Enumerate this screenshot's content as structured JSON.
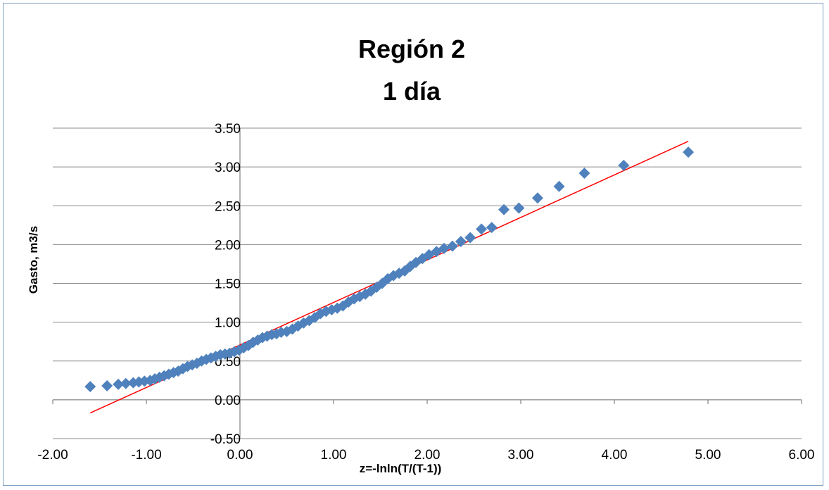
{
  "chart_data": {
    "type": "scatter",
    "title": [
      "Región 2",
      "1 día"
    ],
    "xlabel": "z=-lnln(T/(T-1))",
    "ylabel": "Gasto, m3/s",
    "xlim": [
      -2.0,
      6.0
    ],
    "ylim": [
      -0.5,
      3.5
    ],
    "x_ticks": [
      "-2.00",
      "-1.00",
      "0.00",
      "1.00",
      "2.00",
      "3.00",
      "4.00",
      "5.00",
      "6.00"
    ],
    "y_ticks": [
      "-0.50",
      "0.00",
      "0.50",
      "1.00",
      "1.50",
      "2.00",
      "2.50",
      "3.00",
      "3.50"
    ],
    "grid": "horizontal",
    "legend": "none",
    "colors": {
      "points": "#4f81bd",
      "trendline": "#ff0000"
    },
    "series": [
      {
        "kind": "points",
        "marker": "diamond",
        "x": [
          -1.6,
          -1.42,
          -1.3,
          -1.22,
          -1.14,
          -1.08,
          -1.02,
          -0.96,
          -0.91,
          -0.86,
          -0.81,
          -0.76,
          -0.71,
          -0.66,
          -0.61,
          -0.56,
          -0.51,
          -0.46,
          -0.41,
          -0.36,
          -0.31,
          -0.26,
          -0.21,
          -0.16,
          -0.11,
          -0.06,
          -0.01,
          0.04,
          0.09,
          0.14,
          0.19,
          0.24,
          0.29,
          0.34,
          0.39,
          0.44,
          0.5,
          0.56,
          0.62,
          0.68,
          0.74,
          0.8,
          0.86,
          0.92,
          0.98,
          1.04,
          1.1,
          1.16,
          1.22,
          1.28,
          1.34,
          1.4,
          1.46,
          1.52,
          1.58,
          1.64,
          1.7,
          1.76,
          1.82,
          1.88,
          1.95,
          2.02,
          2.1,
          2.18,
          2.27,
          2.36,
          2.46,
          2.58,
          2.69,
          2.82,
          2.98,
          3.18,
          3.41,
          3.68,
          4.1,
          4.79
        ],
        "y": [
          0.17,
          0.18,
          0.2,
          0.21,
          0.22,
          0.23,
          0.24,
          0.25,
          0.27,
          0.29,
          0.31,
          0.33,
          0.35,
          0.37,
          0.4,
          0.43,
          0.45,
          0.47,
          0.5,
          0.52,
          0.54,
          0.56,
          0.58,
          0.59,
          0.6,
          0.62,
          0.64,
          0.67,
          0.7,
          0.74,
          0.77,
          0.8,
          0.82,
          0.84,
          0.85,
          0.87,
          0.88,
          0.91,
          0.95,
          0.99,
          1.02,
          1.06,
          1.11,
          1.14,
          1.16,
          1.18,
          1.21,
          1.26,
          1.3,
          1.33,
          1.36,
          1.4,
          1.45,
          1.5,
          1.56,
          1.6,
          1.63,
          1.66,
          1.72,
          1.77,
          1.82,
          1.87,
          1.91,
          1.95,
          1.98,
          2.04,
          2.09,
          2.2,
          2.22,
          2.45,
          2.47,
          2.6,
          2.75,
          2.92,
          3.02,
          3.19
        ]
      },
      {
        "kind": "trendline",
        "x": [
          -1.6,
          4.79
        ],
        "y": [
          -0.17,
          3.33
        ]
      }
    ]
  }
}
